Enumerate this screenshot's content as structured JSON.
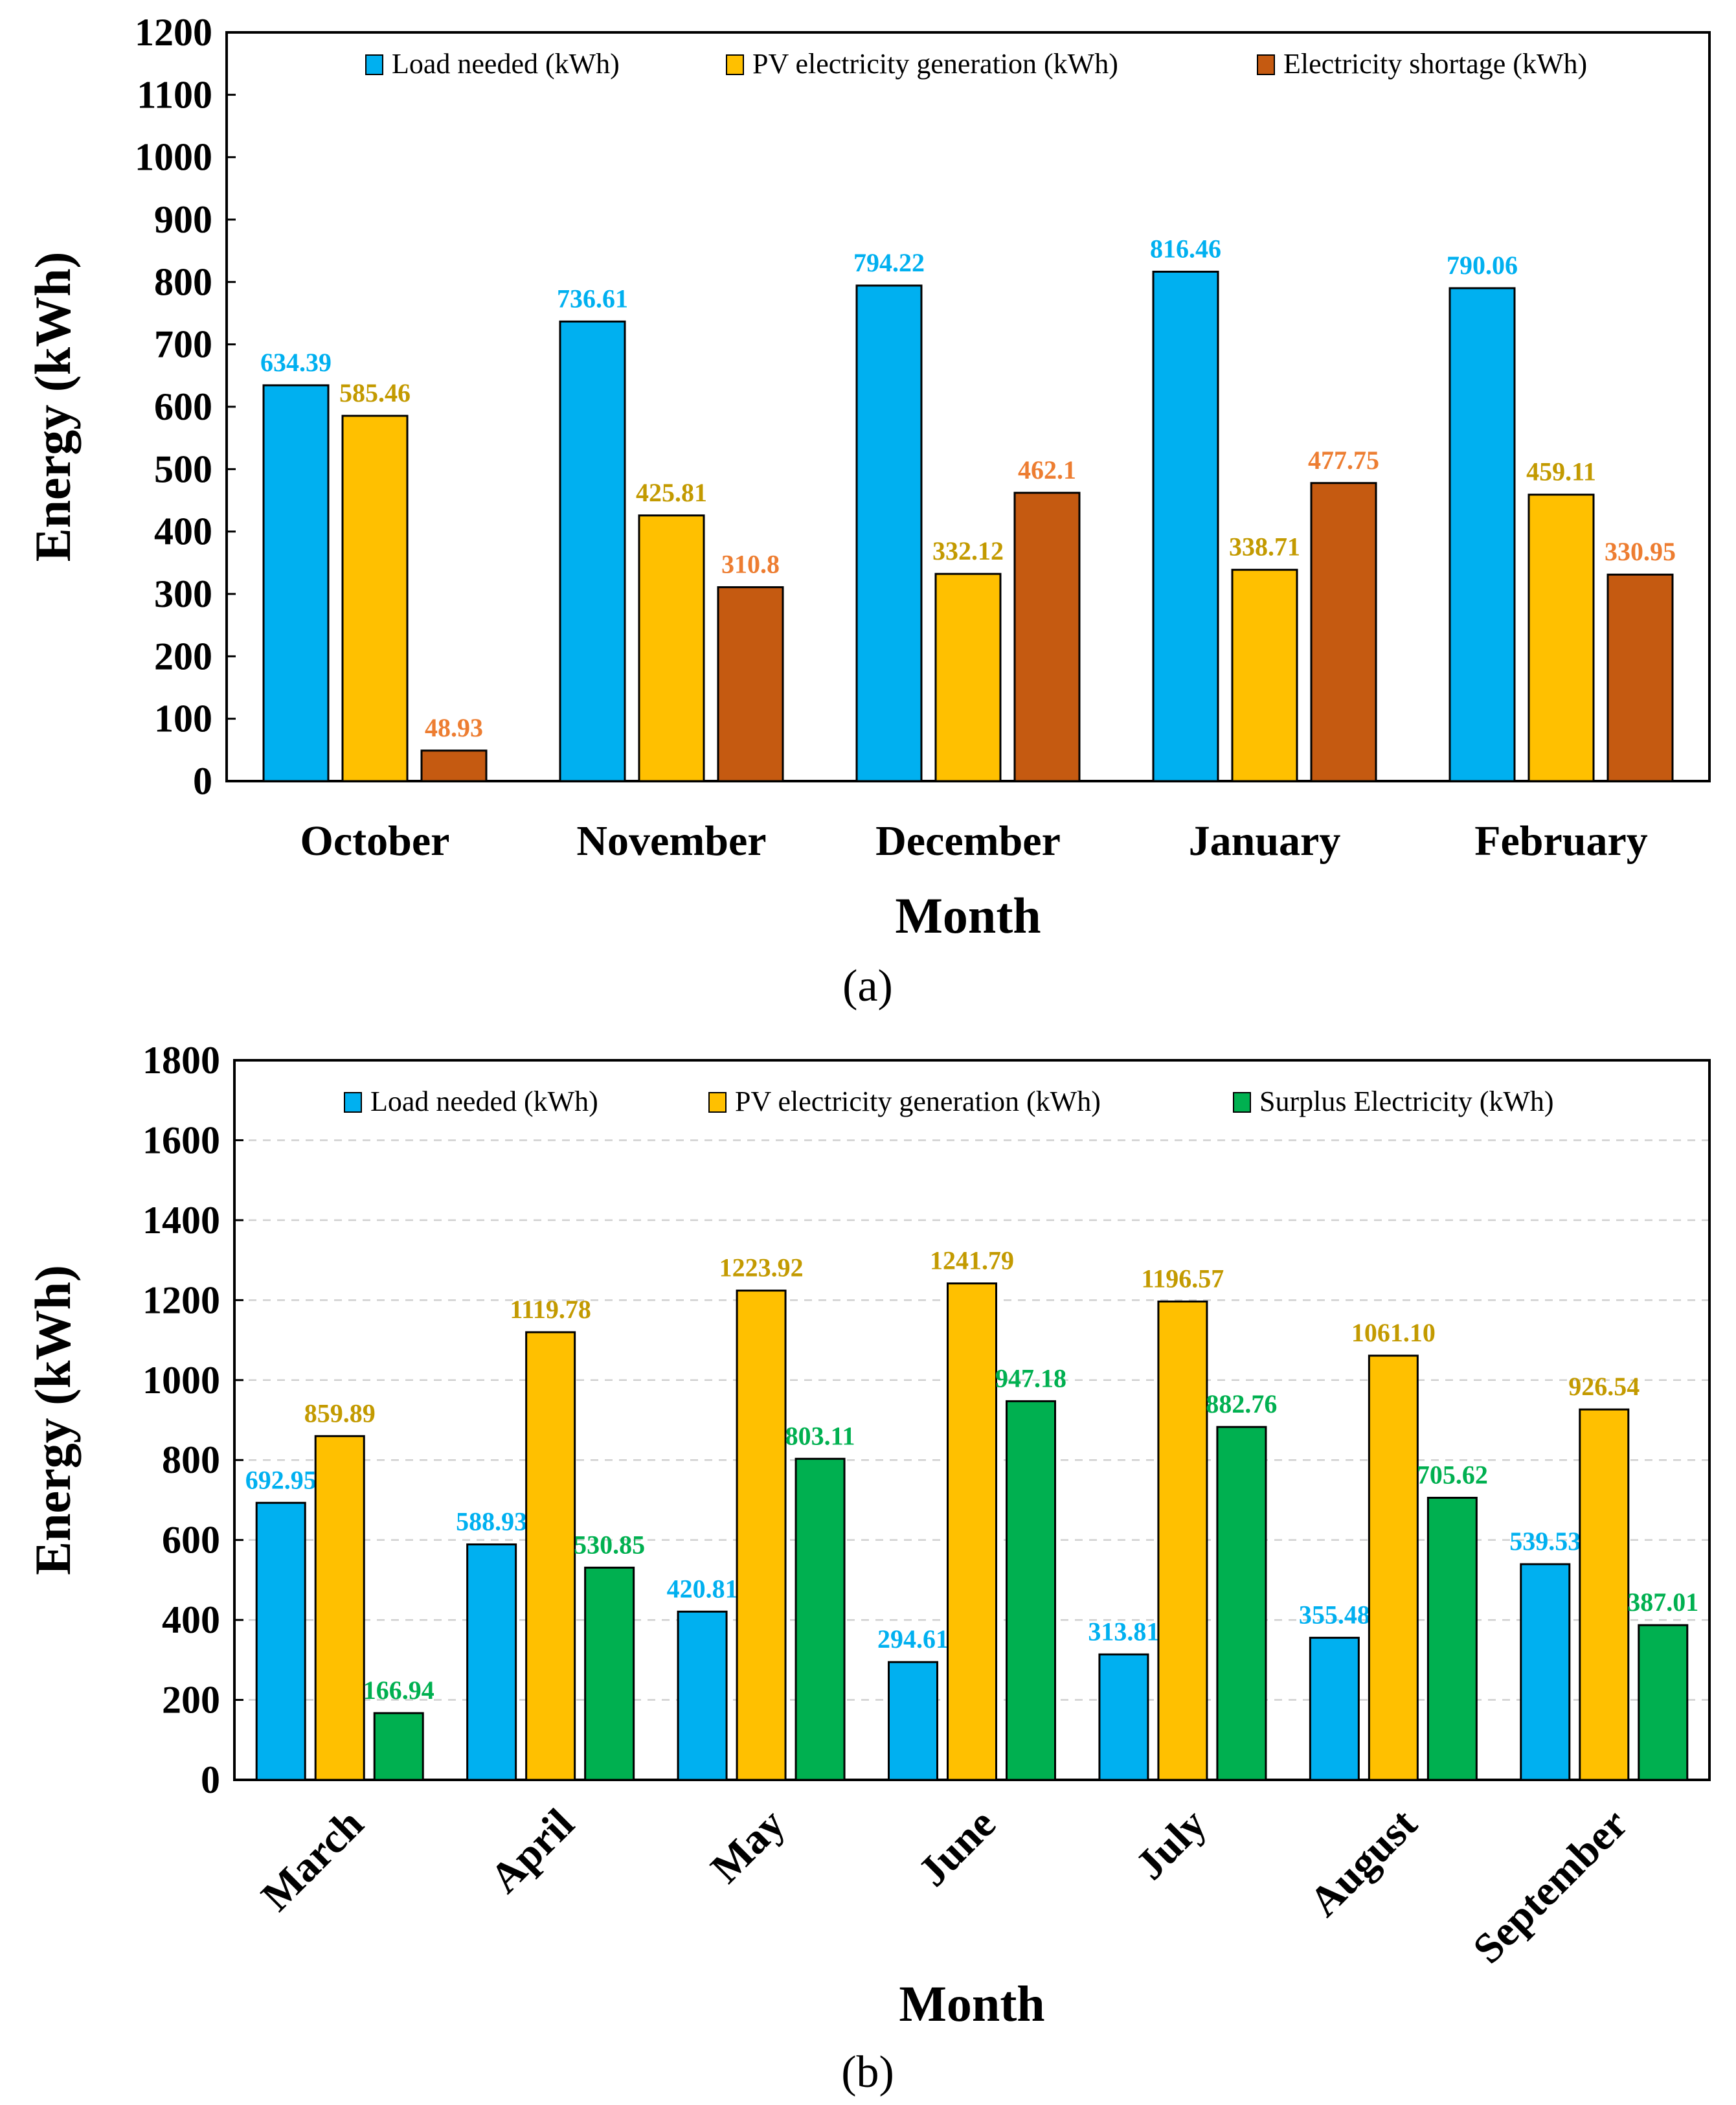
{
  "colors": {
    "load": "#00b0f0",
    "pv": "#ffc000",
    "shortage": "#c55a11",
    "surplus": "#00b050",
    "load_label": "#00b0f0",
    "pv_label": "#c39a00",
    "shortage_label": "#ed7d31",
    "surplus_label": "#00b050"
  },
  "chart_data": [
    {
      "type": "bar",
      "panel_label": "(a)",
      "xlabel": "Month",
      "ylabel": "Energy (kWh)",
      "ylim": [
        0,
        1200
      ],
      "yticks": [
        0,
        100,
        200,
        300,
        400,
        500,
        600,
        700,
        800,
        900,
        1000,
        1100,
        1200
      ],
      "grid": false,
      "legend_position": "top",
      "categories": [
        "October",
        "November",
        "December",
        "January",
        "February"
      ],
      "rotate_categories": false,
      "series": [
        {
          "name": "Load needed (kWh)",
          "color_key": "load",
          "label_color_key": "load_label",
          "values": [
            634.39,
            736.61,
            794.22,
            816.46,
            790.06
          ],
          "labels": [
            "634.39",
            "736.61",
            "794.22",
            "816.46",
            "790.06"
          ]
        },
        {
          "name": "PV electricity generation (kWh)",
          "color_key": "pv",
          "label_color_key": "pv_label",
          "values": [
            585.46,
            425.81,
            332.12,
            338.71,
            459.11
          ],
          "labels": [
            "585.46",
            "425.81",
            "332.12",
            "338.71",
            "459.11"
          ]
        },
        {
          "name": "Electricity shortage (kWh)",
          "color_key": "shortage",
          "label_color_key": "shortage_label",
          "values": [
            48.93,
            310.8,
            462.1,
            477.75,
            330.95
          ],
          "labels": [
            "48.93",
            "310.8",
            "462.1",
            "477.75",
            "330.95"
          ]
        }
      ]
    },
    {
      "type": "bar",
      "panel_label": "(b)",
      "xlabel": "Month",
      "ylabel": "Energy (kWh)",
      "ylim": [
        0,
        1800
      ],
      "yticks": [
        0,
        200,
        400,
        600,
        800,
        1000,
        1200,
        1400,
        1600,
        1800
      ],
      "grid": true,
      "legend_position": "top",
      "categories": [
        "March",
        "April",
        "May",
        "June",
        "July",
        "August",
        "September"
      ],
      "rotate_categories": true,
      "series": [
        {
          "name": "Load needed (kWh)",
          "color_key": "load",
          "label_color_key": "load_label",
          "values": [
            692.95,
            588.93,
            420.81,
            294.61,
            313.81,
            355.48,
            539.53
          ],
          "labels": [
            "692.95",
            "588.93",
            "420.81",
            "294.61",
            "313.81",
            "355.48",
            "539.53"
          ]
        },
        {
          "name": "PV electricity generation (kWh)",
          "color_key": "pv",
          "label_color_key": "pv_label",
          "values": [
            859.89,
            1119.78,
            1223.92,
            1241.79,
            1196.57,
            1061.1,
            926.54
          ],
          "labels": [
            "859.89",
            "1119.78",
            "1223.92",
            "1241.79",
            "1196.57",
            "1061.10",
            "926.54"
          ]
        },
        {
          "name": "Surplus Electricity  (kWh)",
          "color_key": "surplus",
          "label_color_key": "surplus_label",
          "values": [
            166.94,
            530.85,
            803.11,
            947.18,
            882.76,
            705.62,
            387.01
          ],
          "labels": [
            "166.94",
            "530.85",
            "803.11",
            "947.18",
            "882.76",
            "705.62",
            "387.01"
          ]
        }
      ]
    }
  ]
}
